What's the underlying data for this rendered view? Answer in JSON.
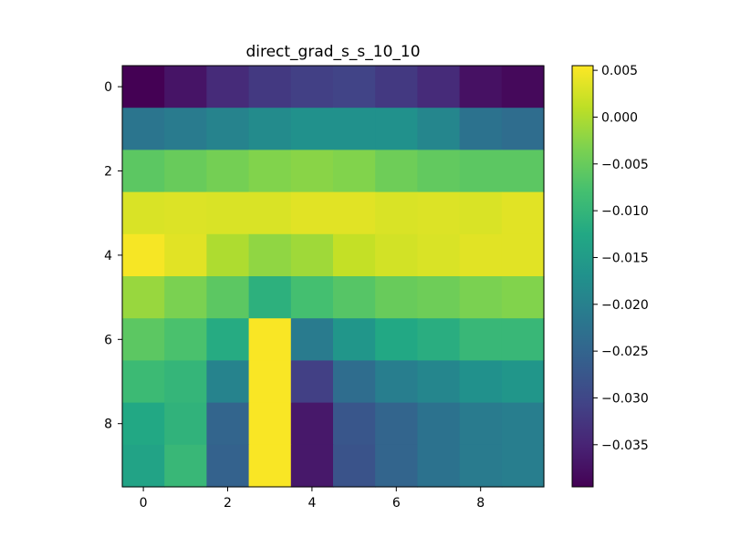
{
  "chart_data": {
    "type": "heatmap",
    "title": "direct_grad_s_s_10_10",
    "colormap": "viridis",
    "vmin": -0.0395,
    "vmax": 0.0055,
    "x_ticks": [
      0,
      2,
      4,
      6,
      8
    ],
    "x_tick_labels": [
      "0",
      "2",
      "4",
      "6",
      "8"
    ],
    "y_ticks": [
      0,
      2,
      4,
      6,
      8
    ],
    "y_tick_labels": [
      "0",
      "2",
      "4",
      "6",
      "8"
    ],
    "colorbar_ticks": [
      0.005,
      0.0,
      -0.005,
      -0.01,
      -0.015,
      -0.02,
      -0.025,
      -0.03,
      -0.035
    ],
    "colorbar_tick_labels": [
      "0.005",
      "0.000",
      "−0.005",
      "−0.010",
      "−0.015",
      "−0.020",
      "−0.025",
      "−0.030",
      "−0.035"
    ],
    "values": [
      [
        -0.0395,
        -0.037,
        -0.034,
        -0.032,
        -0.031,
        -0.0305,
        -0.032,
        -0.034,
        -0.0375,
        -0.0385
      ],
      [
        -0.022,
        -0.021,
        -0.0195,
        -0.018,
        -0.017,
        -0.017,
        -0.017,
        -0.019,
        -0.0225,
        -0.0235
      ],
      [
        -0.006,
        -0.005,
        -0.004,
        -0.003,
        -0.0025,
        -0.003,
        -0.0045,
        -0.0055,
        -0.006,
        -0.006
      ],
      [
        0.003,
        0.0032,
        0.003,
        0.003,
        0.0035,
        0.0035,
        0.003,
        0.0032,
        0.003,
        0.0035
      ],
      [
        0.005,
        0.0035,
        0.0,
        -0.002,
        -0.001,
        0.0015,
        0.0025,
        0.003,
        0.0035,
        0.0035
      ],
      [
        -0.0015,
        -0.0035,
        -0.006,
        -0.011,
        -0.008,
        -0.0065,
        -0.005,
        -0.0045,
        -0.0035,
        -0.003
      ],
      [
        -0.006,
        -0.0075,
        -0.012,
        0.0052,
        -0.021,
        -0.016,
        -0.0125,
        -0.0115,
        -0.0095,
        -0.0095
      ],
      [
        -0.009,
        -0.01,
        -0.0195,
        0.0052,
        -0.031,
        -0.0235,
        -0.0205,
        -0.019,
        -0.017,
        -0.016
      ],
      [
        -0.0125,
        -0.0105,
        -0.025,
        0.0052,
        -0.0365,
        -0.0275,
        -0.025,
        -0.0225,
        -0.021,
        -0.0205
      ],
      [
        -0.0135,
        -0.0095,
        -0.0255,
        0.0052,
        -0.0365,
        -0.028,
        -0.025,
        -0.0225,
        -0.021,
        -0.0205
      ]
    ]
  }
}
